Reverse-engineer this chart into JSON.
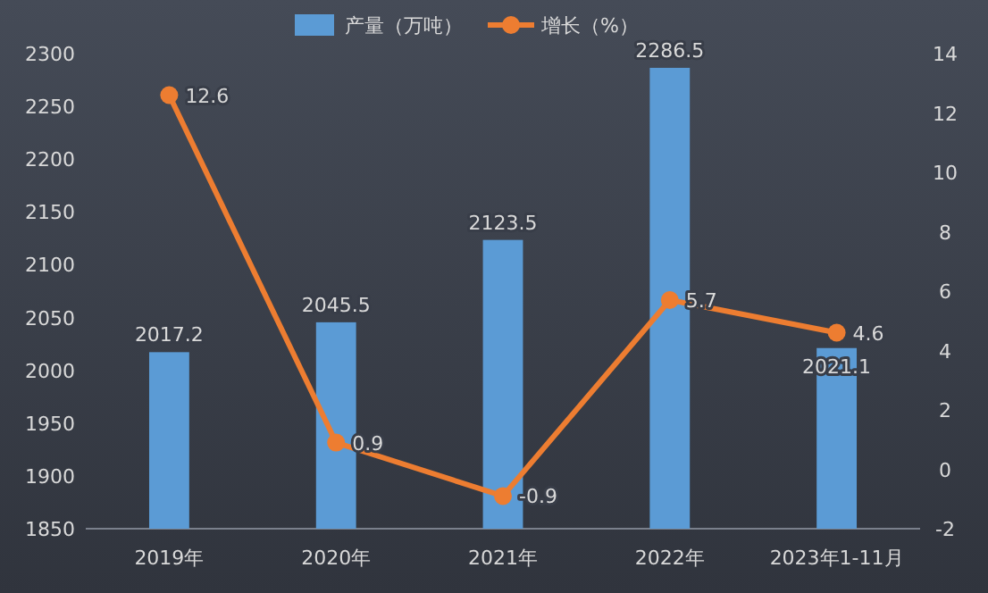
{
  "chart_data": {
    "type": "bar",
    "categories": [
      "2019年",
      "2020年",
      "2021年",
      "2022年",
      "2023年1-11月"
    ],
    "series": [
      {
        "name": "产量（万吨）",
        "color": "#5b9bd5",
        "values": [
          2017.2,
          2045.5,
          2123.5,
          2286.5,
          2021.1
        ]
      },
      {
        "name": "增长（%）",
        "type": "line",
        "axis": "y2",
        "color": "#ed7d31",
        "values": [
          12.6,
          0.9,
          -0.9,
          5.7,
          4.6
        ]
      }
    ],
    "ylim": [
      1850,
      2300
    ],
    "yticks": [
      1850,
      1900,
      1950,
      2000,
      2050,
      2100,
      2150,
      2200,
      2250,
      2300
    ],
    "y2lim": [
      -2,
      14
    ],
    "y2ticks": [
      -2,
      0,
      2,
      4,
      6,
      8,
      10,
      12,
      14
    ],
    "data_labels": true,
    "legend": "top",
    "marker": "circle",
    "line_style": "solid",
    "grid": false
  }
}
